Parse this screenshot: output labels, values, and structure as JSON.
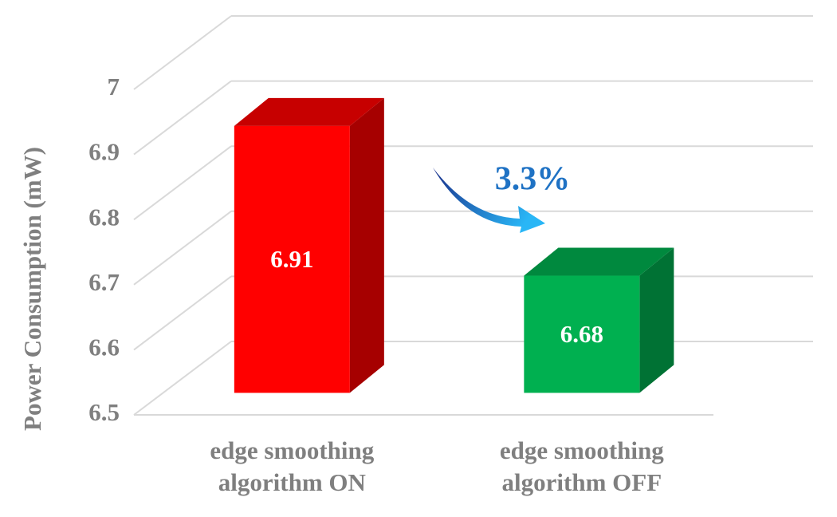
{
  "chart_data": {
    "type": "bar",
    "y_label": "Power Consumption (mW)",
    "categories": [
      "edge smoothing algorithm ON",
      "edge smoothing algorithm OFF"
    ],
    "values": [
      6.91,
      6.68
    ],
    "colors": [
      "#ff0000",
      "#00b050"
    ],
    "annotation": "3.3%",
    "ylim": [
      6.5,
      7
    ],
    "yticks": [
      6.5,
      6.6,
      6.7,
      6.8,
      6.9,
      7
    ],
    "grid": true
  }
}
